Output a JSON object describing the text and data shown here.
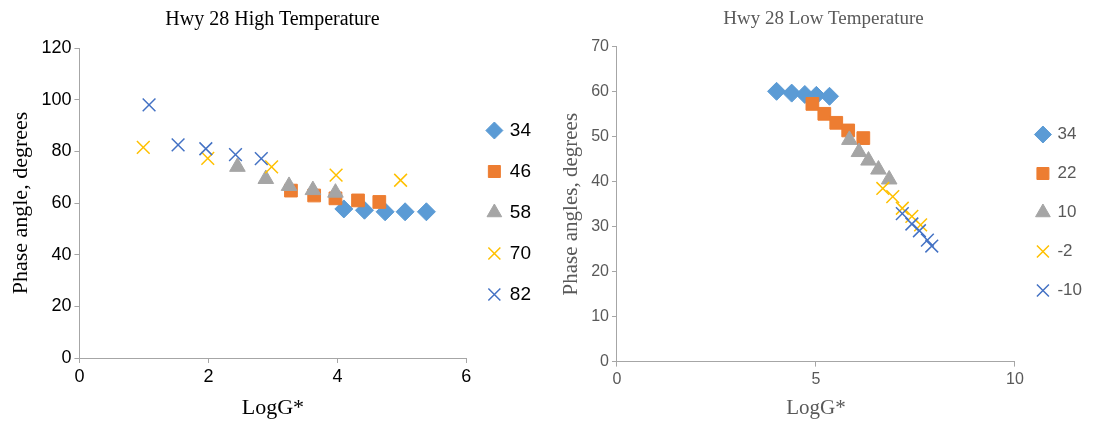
{
  "chart_data": [
    {
      "type": "scatter",
      "title": "Hwy 28 High Temperature",
      "xlabel": "LogG*",
      "ylabel": "Phase angle, degrees",
      "xlim": [
        0,
        6
      ],
      "xticks": [
        0,
        2,
        4,
        6
      ],
      "ylim": [
        0,
        120
      ],
      "yticks": [
        0,
        20,
        40,
        60,
        80,
        100,
        120
      ],
      "grid": false,
      "legend": "right",
      "series": [
        {
          "name": "34",
          "color": "#5b9bd5",
          "marker": "diamond",
          "x": [
            4.1,
            4.42,
            4.74,
            5.05,
            5.38
          ],
          "values": [
            57.7,
            57.2,
            56.6,
            56.6,
            56.6
          ]
        },
        {
          "name": "46",
          "color": "#ed7d31",
          "marker": "square",
          "x": [
            3.28,
            3.64,
            3.97,
            4.32,
            4.65
          ],
          "values": [
            64.8,
            62.9,
            61.8,
            61,
            60.4
          ]
        },
        {
          "name": "58",
          "color": "#a5a5a5",
          "marker": "triangle",
          "x": [
            2.45,
            2.89,
            3.25,
            3.62,
            3.97
          ],
          "values": [
            74,
            69.3,
            66.6,
            65,
            64
          ]
        },
        {
          "name": "70",
          "color": "#ffc000",
          "marker": "cross",
          "x": [
            0.99,
            1.99,
            2.98,
            3.98,
            4.98
          ],
          "values": [
            81.5,
            77.3,
            74,
            70.8,
            68.8
          ]
        },
        {
          "name": "82",
          "color": "#4472c4",
          "marker": "cross",
          "x": [
            1.08,
            1.53,
            1.96,
            2.42,
            2.82
          ],
          "values": [
            98,
            82.5,
            81,
            78.7,
            77.2
          ]
        }
      ]
    },
    {
      "type": "scatter",
      "title": "Hwy 28 Low Temperature",
      "xlabel": "LogG*",
      "ylabel": "Phase angles, degrees",
      "xlim": [
        0,
        10
      ],
      "xticks": [
        0,
        5,
        10
      ],
      "ylim": [
        0,
        70
      ],
      "yticks": [
        0,
        10,
        20,
        30,
        40,
        50,
        60,
        70
      ],
      "grid": false,
      "legend": "right",
      "series": [
        {
          "name": "34",
          "color": "#5b9bd5",
          "marker": "diamond",
          "x": [
            4.01,
            4.39,
            4.72,
            5.01,
            5.34
          ],
          "values": [
            60.1,
            59.7,
            59.4,
            59.2,
            59
          ]
        },
        {
          "name": "22",
          "color": "#ed7d31",
          "marker": "square",
          "x": [
            4.91,
            5.21,
            5.51,
            5.81,
            6.19
          ],
          "values": [
            57.3,
            55.1,
            53.1,
            51.4,
            49.7
          ]
        },
        {
          "name": "10",
          "color": "#a5a5a5",
          "marker": "triangle",
          "x": [
            5.84,
            6.08,
            6.32,
            6.57,
            6.84
          ],
          "values": [
            49.3,
            46.6,
            44.7,
            42.7,
            40.5
          ]
        },
        {
          "name": "-2",
          "color": "#ffc000",
          "marker": "cross",
          "x": [
            6.68,
            6.93,
            7.17,
            7.41,
            7.63
          ],
          "values": [
            38.5,
            36.7,
            34.1,
            32.3,
            30.4
          ]
        },
        {
          "name": "-10",
          "color": "#4472c4",
          "marker": "cross",
          "x": [
            7.17,
            7.41,
            7.6,
            7.8,
            7.91
          ],
          "values": [
            32.9,
            30.6,
            29.1,
            27,
            25.7
          ]
        }
      ]
    }
  ]
}
